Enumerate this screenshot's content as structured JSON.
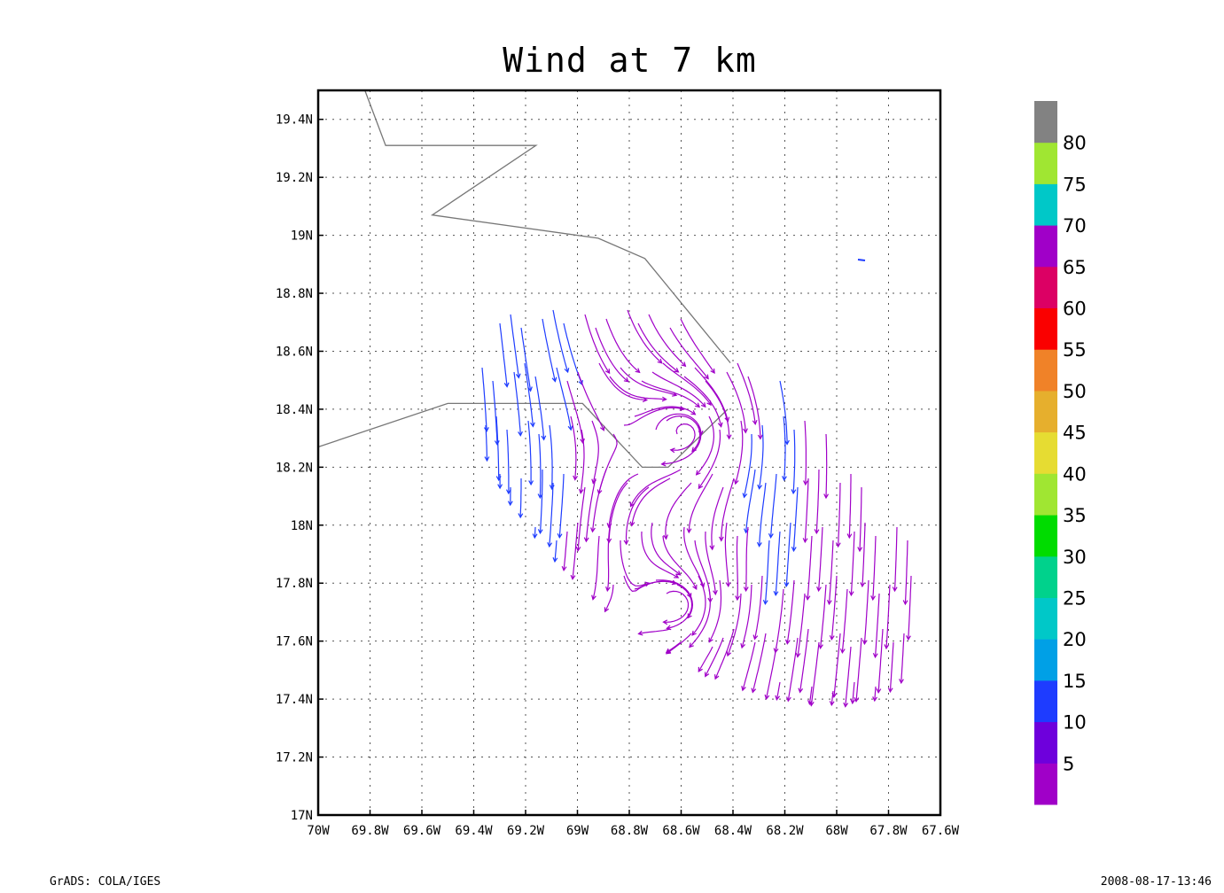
{
  "title": "Wind at 7 km",
  "axes": {
    "lon_range": [
      -70,
      -67.6
    ],
    "lat_range": [
      17,
      19.5
    ],
    "x_ticks": [
      "70W",
      "69.8W",
      "69.6W",
      "69.4W",
      "69.2W",
      "69W",
      "68.8W",
      "68.6W",
      "68.4W",
      "68.2W",
      "68W",
      "67.8W",
      "67.6W"
    ],
    "y_ticks": [
      "17N",
      "17.2N",
      "17.4N",
      "17.6N",
      "17.8N",
      "18N",
      "18.2N",
      "18.4N",
      "18.6N",
      "18.8N",
      "19N",
      "19.2N",
      "19.4N"
    ],
    "grid": true
  },
  "coastline": [
    [
      [
        -69.82,
        19.5
      ],
      [
        -69.74,
        19.31
      ],
      [
        -69.16,
        19.31
      ],
      [
        -69.56,
        19.07
      ],
      [
        -68.92,
        18.99
      ],
      [
        -68.74,
        18.92
      ],
      [
        -68.41,
        18.56
      ]
    ],
    [
      [
        -70,
        18.27
      ],
      [
        -69.5,
        18.42
      ],
      [
        -68.98,
        18.42
      ],
      [
        -68.75,
        18.2
      ],
      [
        -68.65,
        18.2
      ],
      [
        -68.42,
        18.4
      ]
    ]
  ],
  "colorbar": {
    "labels": [
      "5",
      "10",
      "15",
      "20",
      "25",
      "30",
      "35",
      "40",
      "45",
      "50",
      "55",
      "60",
      "65",
      "70",
      "75",
      "80"
    ],
    "colors": [
      "#a000c8",
      "#6e00dc",
      "#1e3cff",
      "#00a0e6",
      "#00c8c8",
      "#00d28c",
      "#00dc00",
      "#a0e632",
      "#e6dc32",
      "#e6af2d",
      "#f08228",
      "#fa0000",
      "#dc0064",
      "#a000c8",
      "#00c8c8",
      "#a0e632",
      "#828282"
    ]
  },
  "credit": "GrADS: COLA/IGES",
  "timestamp": "2008-08-17-13:46"
}
